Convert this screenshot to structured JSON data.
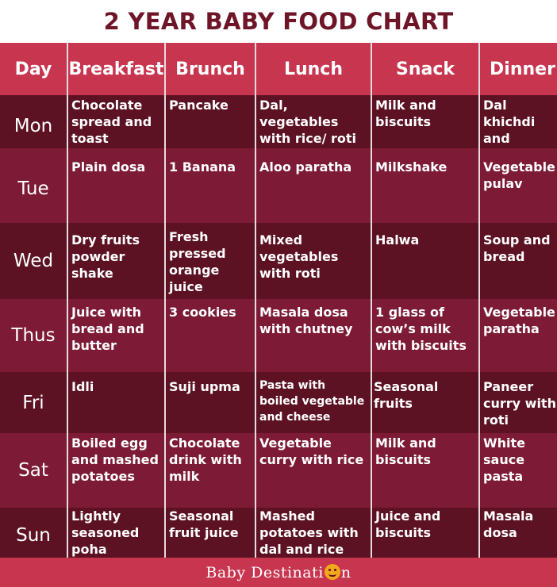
{
  "title": "2 YEAR BABY FOOD CHART",
  "headers": [
    "Day",
    "Breakfast",
    "Brunch",
    "Lunch",
    "Snack",
    "Dinner"
  ],
  "rows": [
    {
      "day": "Mon",
      "meals": [
        "Chocolate spread and toast",
        "Pancake",
        "Dal, vegetables with rice/ roti",
        "Milk and biscuits",
        "Dal khichdi and vegetables"
      ]
    },
    {
      "day": "Tue",
      "meals": [
        "Plain dosa",
        "1 Banana",
        "Aloo paratha",
        "Milkshake",
        "Vegetable pulav"
      ]
    },
    {
      "day": "Wed",
      "meals": [
        "Dry fruits powder shake",
        "Fresh pressed orange juice",
        "Mixed vegetables with roti",
        "Halwa",
        "Soup and bread"
      ]
    },
    {
      "day": "Thus",
      "meals": [
        "Juice with bread and butter",
        "3 cookies",
        "Masala dosa with chutney",
        "1 glass of cow’s milk with biscuits",
        "Vegetable paratha"
      ]
    },
    {
      "day": "Fri",
      "meals": [
        "Idli",
        "Suji upma",
        "Pasta with boiled vegetable and cheese",
        "Seasonal fruits",
        "Paneer curry with roti"
      ]
    },
    {
      "day": "Sat",
      "meals": [
        "Boiled egg and mashed potatoes",
        "Chocolate drink with milk",
        "Vegetable curry with rice",
        "Milk and biscuits",
        "White sauce pasta"
      ]
    },
    {
      "day": "Sun",
      "meals": [
        "Lightly seasoned poha",
        "Seasonal fruit juice",
        "Mashed potatoes with dal and rice",
        "Juice and biscuits",
        "Masala dosa"
      ]
    }
  ],
  "footer": {
    "brand_start": "Baby Destinati",
    "brand_end": "n",
    "logo_icon": "smiley-o-icon"
  },
  "colors": {
    "header": "#c7354f",
    "title": "#6e1528",
    "row_dark": "#5c1222",
    "row_light": "#7d1b36",
    "logo": "#f2a81a"
  }
}
